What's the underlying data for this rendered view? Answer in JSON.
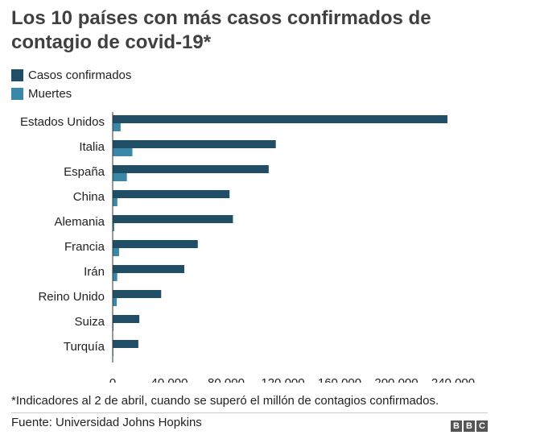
{
  "title": "Los 10 países con más casos confirmados de contagio de covid-19*",
  "legend": [
    {
      "label": "Casos confirmados",
      "color": "#1f4e66"
    },
    {
      "label": "Muertes",
      "color": "#3a87a8"
    }
  ],
  "footnote": "*Indicadores al 2 de abril, cuando se superó el millón de contagios confirmados.",
  "source": "Fuente: Universidad Johns Hopkins",
  "logo": [
    "B",
    "B",
    "C"
  ],
  "chart_data": {
    "type": "bar",
    "orientation": "horizontal",
    "categories": [
      "Estados Unidos",
      "Italia",
      "España",
      "China",
      "Alemania",
      "Francia",
      "Irán",
      "Reino Unido",
      "Suiza",
      "Turquía"
    ],
    "series": [
      {
        "name": "Casos confirmados",
        "values": [
          236000,
          115000,
          110000,
          82400,
          84800,
          60000,
          50500,
          34200,
          18800,
          18100
        ]
      },
      {
        "name": "Muertes",
        "values": [
          5600,
          13900,
          10000,
          3300,
          1100,
          4500,
          3200,
          2900,
          540,
          360
        ]
      }
    ],
    "xticks": [
      0,
      40000,
      80000,
      120000,
      160000,
      200000,
      240000
    ],
    "xtick_labels": [
      "0",
      "40.000",
      "80.000",
      "120.000",
      "160.000",
      "200.000",
      "240.000"
    ],
    "xlim": [
      0,
      250000
    ],
    "colors": [
      "#1f4e66",
      "#3a87a8"
    ],
    "legend_position": "top-left",
    "grid": false
  }
}
